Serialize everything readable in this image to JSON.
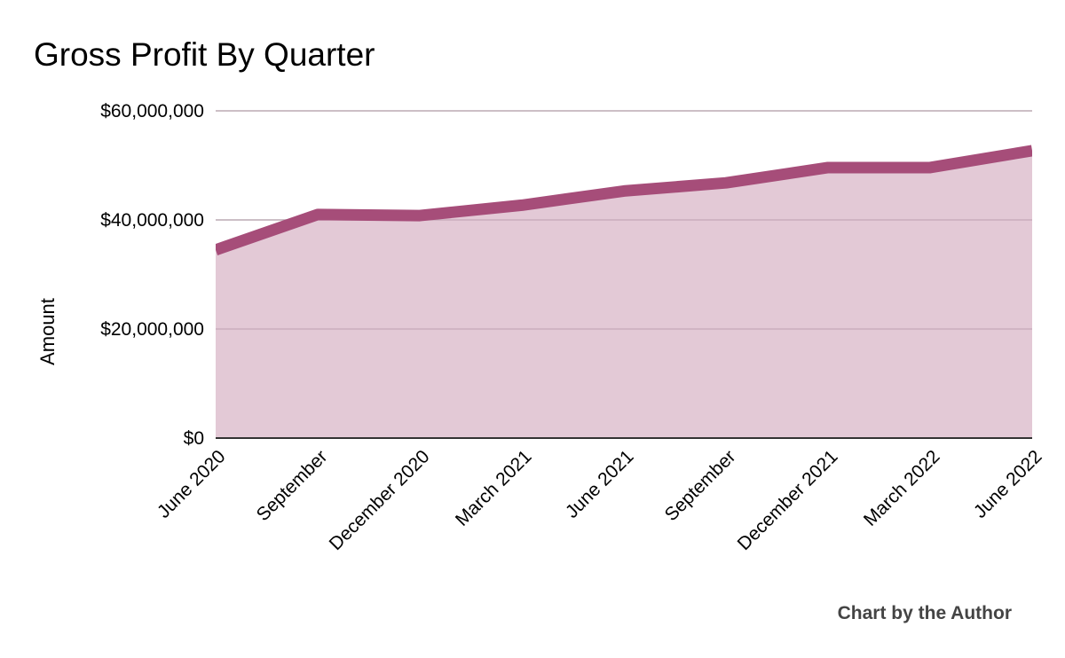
{
  "chart_data": {
    "type": "area",
    "title": "Gross Profit By Quarter",
    "xlabel": "",
    "ylabel": "Amount",
    "categories": [
      "June 2020",
      "September",
      "December 2020",
      "March 2021",
      "June 2021",
      "September",
      "December 2021",
      "March 2022",
      "June 2022"
    ],
    "series": [
      {
        "values": [
          34500000,
          41000000,
          40800000,
          42700000,
          45300000,
          46800000,
          49600000,
          49600000,
          52700000
        ]
      }
    ],
    "y_ticks": [
      {
        "value": 0,
        "label": "$0"
      },
      {
        "value": 20000000,
        "label": "$20,000,000"
      },
      {
        "value": 40000000,
        "label": "$40,000,000"
      },
      {
        "value": 60000000,
        "label": "$60,000,000"
      }
    ],
    "ylim": [
      0,
      60000000
    ],
    "grid": true,
    "legend": "none",
    "colors": {
      "line": "#a64d79",
      "fill": "#e3c9d6",
      "grid": "#c9c9c9",
      "baseline": "#333333"
    },
    "credit": "Chart by the Author"
  }
}
